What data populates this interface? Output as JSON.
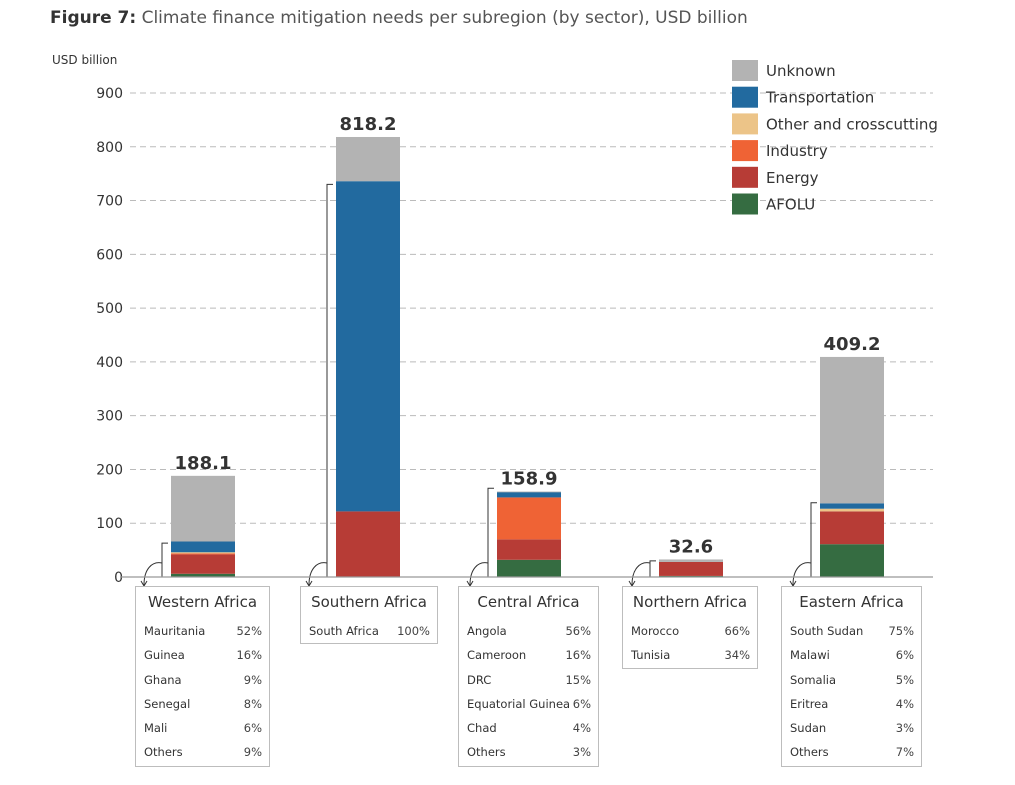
{
  "figure": {
    "label": "Figure 7:",
    "title": "Climate finance mitigation needs per subregion (by sector), USD billion"
  },
  "colors": {
    "Unknown": "#b3b3b3",
    "Transportation": "#226a9f",
    "Other and crosscutting": "#ecc488",
    "Industry": "#ef6335",
    "Energy": "#b73c36",
    "AFOLU": "#356c41",
    "grid": "#bbbbbb",
    "axis": "#999999"
  },
  "chart_data": {
    "type": "bar",
    "stacked": true,
    "title": "Climate finance mitigation needs per subregion (by sector), USD billion",
    "ylabel": "USD billion",
    "ylim": [
      0,
      900
    ],
    "yticks": [
      0,
      100,
      200,
      300,
      400,
      500,
      600,
      700,
      800,
      900
    ],
    "grid": true,
    "legend_position": "top-right",
    "categories": [
      "Western Africa",
      "Southern Africa",
      "Central Africa",
      "Northern Africa",
      "Eastern Africa"
    ],
    "totals": [
      188.1,
      818.2,
      158.9,
      32.6,
      409.2
    ],
    "total_labels": [
      "188.1",
      "818.2",
      "158.9",
      "32.6",
      "409.2"
    ],
    "series": [
      {
        "name": "AFOLU",
        "values": [
          6,
          0,
          32,
          2,
          61
        ]
      },
      {
        "name": "Energy",
        "values": [
          36,
          122,
          38,
          26,
          61
        ]
      },
      {
        "name": "Industry",
        "values": [
          2,
          0,
          78,
          0,
          0
        ]
      },
      {
        "name": "Other and crosscutting",
        "values": [
          2,
          0,
          0,
          0,
          5
        ]
      },
      {
        "name": "Transportation",
        "values": [
          20,
          614,
          10,
          0,
          10
        ]
      },
      {
        "name": "Unknown",
        "values": [
          122.1,
          82.2,
          0.9,
          4.6,
          272.2
        ]
      }
    ],
    "legend_order": [
      "Unknown",
      "Transportation",
      "Other and crosscutting",
      "Industry",
      "Energy",
      "AFOLU"
    ],
    "bracket_ranges": [
      [
        0,
        63
      ],
      [
        0,
        730
      ],
      [
        0,
        165
      ],
      [
        0,
        30
      ],
      [
        0,
        138
      ]
    ]
  },
  "tables": [
    {
      "title": "Western Africa",
      "rows": [
        {
          "country": "Mauritania",
          "pct": "52%"
        },
        {
          "country": "Guinea",
          "pct": "16%"
        },
        {
          "country": "Ghana",
          "pct": "9%"
        },
        {
          "country": "Senegal",
          "pct": "8%"
        },
        {
          "country": "Mali",
          "pct": "6%"
        },
        {
          "country": "Others",
          "pct": "9%"
        }
      ]
    },
    {
      "title": "Southern Africa",
      "rows": [
        {
          "country": "South Africa",
          "pct": "100%"
        }
      ]
    },
    {
      "title": "Central Africa",
      "rows": [
        {
          "country": "Angola",
          "pct": "56%"
        },
        {
          "country": "Cameroon",
          "pct": "16%"
        },
        {
          "country": "DRC",
          "pct": "15%"
        },
        {
          "country": "Equatorial Guinea",
          "pct": "6%"
        },
        {
          "country": "Chad",
          "pct": "4%"
        },
        {
          "country": "Others",
          "pct": "3%"
        }
      ]
    },
    {
      "title": "Northern Africa",
      "rows": [
        {
          "country": "Morocco",
          "pct": "66%"
        },
        {
          "country": "Tunisia",
          "pct": "34%"
        }
      ]
    },
    {
      "title": "Eastern Africa",
      "rows": [
        {
          "country": "South Sudan",
          "pct": "75%"
        },
        {
          "country": "Malawi",
          "pct": "6%"
        },
        {
          "country": "Somalia",
          "pct": "5%"
        },
        {
          "country": "Eritrea",
          "pct": "4%"
        },
        {
          "country": "Sudan",
          "pct": "3%"
        },
        {
          "country": "Others",
          "pct": "7%"
        }
      ]
    }
  ]
}
